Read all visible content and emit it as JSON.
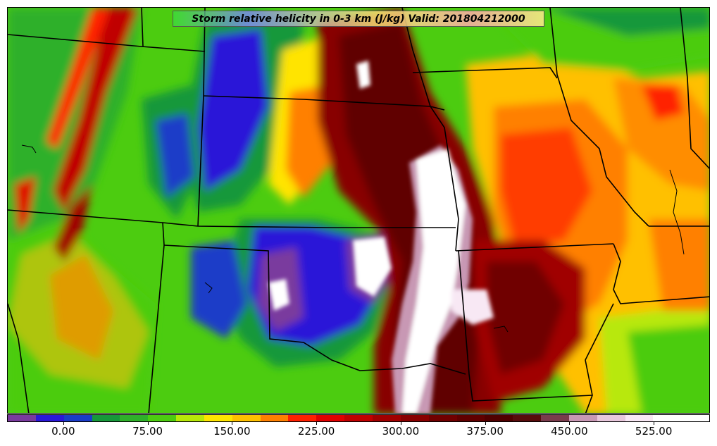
{
  "title": "Storm relative helicity in 0-3 km (J/kg) Valid: 201804212000",
  "colorbar": {
    "tick_labels": [
      "0.00",
      "75.00",
      "150.00",
      "225.00",
      "300.00",
      "375.00",
      "450.00",
      "525.00"
    ],
    "tick_values": [
      0,
      75,
      150,
      225,
      300,
      375,
      450,
      525
    ],
    "min": -50,
    "max": 575,
    "bin_width": 25,
    "colors": [
      "#7a3a9e",
      "#2a18d8",
      "#1a3cc8",
      "#17983a",
      "#2fb02a",
      "#4ccc10",
      "#b8e808",
      "#ffe400",
      "#ffc000",
      "#ff8000",
      "#ff2000",
      "#e00000",
      "#c00000",
      "#a00000",
      "#880000",
      "#700000",
      "#600000",
      "#500000",
      "#580c0c",
      "#7a3c4c",
      "#c898b4",
      "#e8c8dc",
      "#f8e8f4",
      "#ffffff",
      "#ffffff"
    ]
  }
}
